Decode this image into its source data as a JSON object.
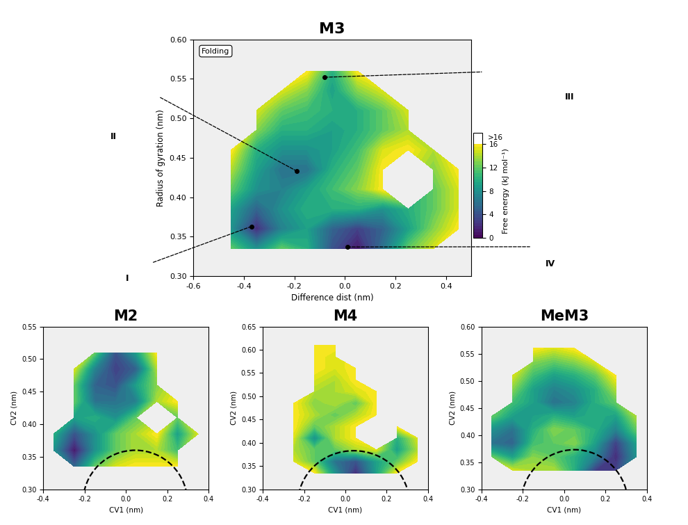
{
  "chart_data": [
    {
      "type": "heatmap",
      "title": "M3",
      "x_label": "Difference dist (nm)",
      "y_label": "Radius of gyration (nm)",
      "annotation": "Folding",
      "xlim": [
        -0.6,
        0.5
      ],
      "ylim": [
        0.3,
        0.6
      ],
      "xticks": [
        -0.6,
        -0.4,
        -0.2,
        {
          "value": 0,
          "label": "0.0"
        },
        0.2,
        0.4
      ],
      "yticks": [
        {
          "value": 0.3,
          "label": "0.30"
        },
        0.35,
        {
          "value": 0.4,
          "label": "0.40"
        },
        0.45,
        {
          "value": 0.5,
          "label": "0.50"
        },
        0.55,
        {
          "value": 0.6,
          "label": "0.60"
        }
      ],
      "x": [
        -0.45,
        -0.35,
        -0.25,
        -0.15,
        -0.05,
        0.05,
        0.15,
        0.25,
        0.35,
        0.45
      ],
      "y": [
        0.335,
        0.36,
        0.385,
        0.41,
        0.435,
        0.46,
        0.485,
        0.51,
        0.535,
        0.56
      ],
      "free_energy": [
        [
          12,
          8,
          12,
          10,
          4,
          1,
          6,
          12,
          15,
          null
        ],
        [
          8,
          2,
          7,
          9,
          5,
          3,
          5,
          9,
          13,
          16
        ],
        [
          9,
          5,
          8,
          10,
          10,
          10,
          8,
          10,
          12,
          15
        ],
        [
          12,
          8,
          7,
          9,
          11,
          13,
          16,
          null,
          12,
          15
        ],
        [
          14,
          9,
          6,
          6,
          10,
          12,
          16,
          null,
          13,
          16
        ],
        [
          16,
          10,
          8,
          8,
          9,
          11,
          15,
          16,
          14,
          null
        ],
        [
          null,
          13,
          10,
          10,
          9,
          10,
          12,
          14,
          null,
          null
        ],
        [
          null,
          15,
          12,
          11,
          10,
          10,
          12,
          15,
          null,
          null
        ],
        [
          null,
          null,
          15,
          13,
          9,
          13,
          15,
          null,
          null,
          null
        ],
        [
          null,
          null,
          null,
          16,
          10,
          16,
          null,
          null,
          null,
          null
        ]
      ],
      "states": [
        {
          "label": "I",
          "x": -0.37,
          "y": 0.363
        },
        {
          "label": "II",
          "x": -0.19,
          "y": 0.433
        },
        {
          "label": "III",
          "x": -0.08,
          "y": 0.552
        },
        {
          "label": "IV",
          "x": 0.01,
          "y": 0.337
        }
      ],
      "colorbar": {
        "label": "Free energy (kJ mol⁻¹)",
        "range": [
          0,
          16
        ],
        "ticks": [
          0,
          4,
          8,
          12,
          16
        ],
        "over_label": ">16"
      }
    },
    {
      "type": "heatmap",
      "title": "M2",
      "x_label": "CV1 (nm)",
      "y_label": "CV2 (nm)",
      "xlim": [
        -0.4,
        0.4
      ],
      "ylim": [
        0.3,
        0.55
      ],
      "xticks": [
        -0.4,
        -0.2,
        {
          "value": 0,
          "label": "0.0"
        },
        0.2,
        0.4
      ],
      "yticks": [
        {
          "value": 0.3,
          "label": "0.30"
        },
        0.35,
        {
          "value": 0.4,
          "label": "0.40"
        },
        0.45,
        {
          "value": 0.5,
          "label": "0.50"
        },
        0.55
      ],
      "x": [
        -0.35,
        -0.25,
        -0.15,
        -0.05,
        0.05,
        0.15,
        0.25,
        0.35
      ],
      "y": [
        0.335,
        0.36,
        0.385,
        0.41,
        0.435,
        0.46,
        0.485,
        0.51
      ],
      "free_energy": [
        [
          null,
          5,
          12,
          15,
          16,
          16,
          16,
          null
        ],
        [
          8,
          1,
          8,
          12,
          14,
          14,
          11,
          null
        ],
        [
          10,
          4,
          8,
          12,
          14,
          16,
          9,
          15
        ],
        [
          null,
          9,
          10,
          8,
          12,
          null,
          12,
          null
        ],
        [
          null,
          12,
          6,
          6,
          7,
          14,
          16,
          null
        ],
        [
          null,
          12,
          5,
          4,
          9,
          13,
          null,
          null
        ],
        [
          null,
          15,
          7,
          3,
          5,
          14,
          null,
          null
        ],
        [
          null,
          null,
          12,
          4,
          9,
          16,
          null,
          null
        ]
      ],
      "dashed_arc": {
        "center": [
          0.045,
          0.28
        ],
        "x_radius": 0.253,
        "y_radius": 0.08
      }
    },
    {
      "type": "heatmap",
      "title": "M4",
      "x_label": "CV1 (nm)",
      "y_label": "CV2 (nm)",
      "xlim": [
        -0.4,
        0.4
      ],
      "ylim": [
        0.3,
        0.65
      ],
      "xticks": [
        -0.4,
        -0.2,
        {
          "value": 0,
          "label": "0.0"
        },
        0.2,
        0.4
      ],
      "yticks": [
        {
          "value": 0.3,
          "label": "0.30"
        },
        0.35,
        {
          "value": 0.4,
          "label": "0.40"
        },
        0.45,
        {
          "value": 0.5,
          "label": "0.50"
        },
        0.55,
        {
          "value": 0.6,
          "label": "0.60"
        },
        0.65
      ],
      "x": [
        -0.35,
        -0.25,
        -0.15,
        -0.05,
        0.05,
        0.15,
        0.25,
        0.35
      ],
      "y": [
        0.335,
        0.36,
        0.385,
        0.41,
        0.435,
        0.46,
        0.485,
        0.51,
        0.535,
        0.56,
        0.585,
        0.61
      ],
      "free_energy": [
        [
          null,
          null,
          16,
          8,
          2,
          9,
          16,
          null
        ],
        [
          null,
          15,
          12,
          6,
          4,
          9,
          12,
          16
        ],
        [
          null,
          14,
          12,
          12,
          14,
          15,
          9,
          14
        ],
        [
          null,
          15,
          8,
          14,
          16,
          null,
          10,
          15
        ],
        [
          null,
          16,
          12,
          14,
          16,
          null,
          16,
          null
        ],
        [
          null,
          16,
          14,
          12,
          14,
          16,
          null,
          null
        ],
        [
          null,
          16,
          13,
          14,
          12,
          16,
          null,
          null
        ],
        [
          null,
          null,
          14,
          14,
          15,
          16,
          null,
          null
        ],
        [
          null,
          null,
          15,
          14,
          16,
          null,
          null,
          null
        ],
        [
          null,
          null,
          16,
          15,
          16,
          null,
          null,
          null
        ],
        [
          null,
          null,
          16,
          15,
          null,
          null,
          null,
          null
        ],
        [
          null,
          null,
          16,
          16,
          null,
          null,
          null,
          null
        ]
      ],
      "dashed_arc": {
        "center": [
          0.04,
          0.27
        ],
        "x_radius": 0.27,
        "y_radius": 0.113
      }
    },
    {
      "type": "heatmap",
      "title": "MeM3",
      "x_label": "CV1 (nm)",
      "y_label": "CV2 (nm)",
      "xlim": [
        -0.4,
        0.4
      ],
      "ylim": [
        0.3,
        0.6
      ],
      "xticks": [
        -0.4,
        -0.2,
        {
          "value": 0,
          "label": "0.0"
        },
        0.2,
        0.4
      ],
      "yticks": [
        {
          "value": 0.3,
          "label": "0.30"
        },
        0.35,
        {
          "value": 0.4,
          "label": "0.40"
        },
        0.45,
        {
          "value": 0.5,
          "label": "0.50"
        },
        0.55,
        {
          "value": 0.6,
          "label": "0.60"
        }
      ],
      "x": [
        -0.35,
        -0.25,
        -0.15,
        -0.05,
        0.05,
        0.15,
        0.25,
        0.35
      ],
      "y": [
        0.335,
        0.36,
        0.385,
        0.41,
        0.435,
        0.46,
        0.485,
        0.51,
        0.535,
        0.56
      ],
      "free_energy": [
        [
          null,
          15,
          14,
          14,
          10,
          3,
          3,
          null
        ],
        [
          12,
          9,
          13,
          12,
          10,
          7,
          2,
          8
        ],
        [
          6,
          5,
          11,
          12,
          13,
          9,
          3,
          9
        ],
        [
          8,
          6,
          10,
          13,
          12,
          10,
          7,
          12
        ],
        [
          12,
          9,
          9,
          10,
          9,
          10,
          9,
          14
        ],
        [
          null,
          11,
          9,
          6,
          7,
          10,
          12,
          null
        ],
        [
          null,
          13,
          9,
          7,
          8,
          10,
          14,
          null
        ],
        [
          null,
          15,
          11,
          9,
          10,
          12,
          16,
          null
        ],
        [
          null,
          null,
          13,
          12,
          13,
          15,
          null,
          null
        ],
        [
          null,
          null,
          16,
          15,
          16,
          null,
          null,
          null
        ]
      ],
      "dashed_arc": {
        "center": [
          0.05,
          0.27
        ],
        "x_radius": 0.261,
        "y_radius": 0.103
      }
    }
  ]
}
